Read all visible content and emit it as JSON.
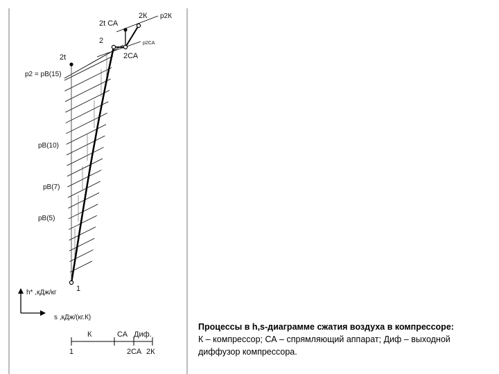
{
  "diagram": {
    "isobars": {
      "p2k": "p2К",
      "p2ca": "p2СА",
      "p2": "p2 = pB(15)",
      "pb10": "pB(10)",
      "pb7": "pB(7)",
      "pb5": "pB(5)"
    },
    "points": {
      "p2k": "2К",
      "p2tca": "2t СА",
      "p2": "2",
      "p2ca": "2СА",
      "p2t": "2t",
      "p1": "1"
    },
    "axes": {
      "y_label": "h* ,кДж/кг",
      "x_label": "s ,кДж/(кг.К)"
    },
    "stage_bar": {
      "k": "К",
      "ca": "СА",
      "dif": "Диф.",
      "start": "1",
      "mid": "2СА",
      "end": "2К"
    }
  },
  "caption": {
    "title": "Процессы в h,s-диаграмме сжатия воздуха в компрессоре:",
    "line1": "К – компрессор; СА – спрямляющий аппарат; Диф – выходной",
    "line2": "диффузор компрессора."
  }
}
